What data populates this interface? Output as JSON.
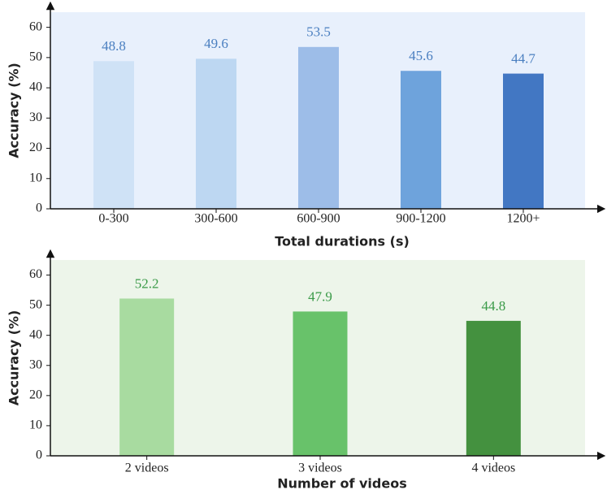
{
  "chart_data": [
    {
      "type": "bar",
      "x_label": "Total durations (s)",
      "y_label": "Accuracy (%)",
      "categories": [
        "0-300",
        "300-600",
        "600-900",
        "900-1200",
        "1200+"
      ],
      "values": [
        48.8,
        49.6,
        53.5,
        45.6,
        44.7
      ],
      "colors": [
        "#cfe2f6",
        "#bdd7f2",
        "#9dbde8",
        "#6ea3dc",
        "#4277c3"
      ],
      "label_color": "#4a7fc0",
      "background": "#e8f0fc",
      "ylim": [
        0,
        65
      ],
      "yticks": [
        0,
        10,
        20,
        30,
        40,
        50,
        60
      ]
    },
    {
      "type": "bar",
      "x_label": "Number of videos",
      "y_label": "Accuracy (%)",
      "categories": [
        "2 videos",
        "3 videos",
        "4 videos"
      ],
      "values": [
        52.2,
        47.9,
        44.8
      ],
      "colors": [
        "#a8dba0",
        "#68c26a",
        "#44913f"
      ],
      "label_color": "#3a9a48",
      "background": "#edf5ea",
      "ylim": [
        0,
        65
      ],
      "yticks": [
        0,
        10,
        20,
        30,
        40,
        50,
        60
      ]
    }
  ]
}
